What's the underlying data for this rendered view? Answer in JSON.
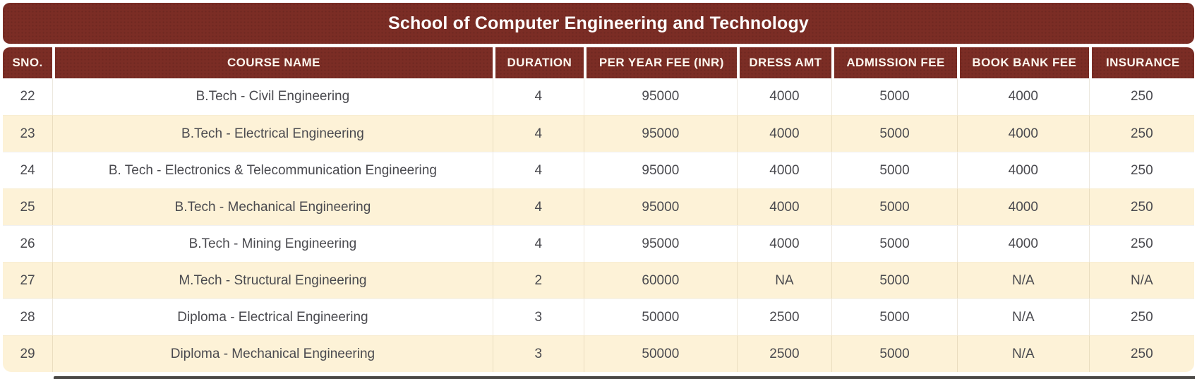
{
  "title": "School of Computer Engineering and Technology",
  "colors": {
    "brand_maroon": "#7b2d25",
    "stripe_cream": "#fdf2d7",
    "body_text": "#4a4a4f",
    "header_text": "#fdf6ee"
  },
  "table": {
    "columns": [
      "SNO.",
      "COURSE NAME",
      "DURATION",
      "PER YEAR FEE (INR)",
      "DRESS AMT",
      "ADMISSION FEE",
      "BOOK BANK FEE",
      "INSURANCE"
    ],
    "rows": [
      [
        "22",
        "B.Tech - Civil Engineering",
        "4",
        "95000",
        "4000",
        "5000",
        "4000",
        "250"
      ],
      [
        "23",
        "B.Tech - Electrical Engineering",
        "4",
        "95000",
        "4000",
        "5000",
        "4000",
        "250"
      ],
      [
        "24",
        "B. Tech - Electronics & Telecommunication Engineering",
        "4",
        "95000",
        "4000",
        "5000",
        "4000",
        "250"
      ],
      [
        "25",
        "B.Tech - Mechanical Engineering",
        "4",
        "95000",
        "4000",
        "5000",
        "4000",
        "250"
      ],
      [
        "26",
        "B.Tech - Mining Engineering",
        "4",
        "95000",
        "4000",
        "5000",
        "4000",
        "250"
      ],
      [
        "27",
        "M.Tech - Structural Engineering",
        "2",
        "60000",
        "NA",
        "5000",
        "N/A",
        "N/A"
      ],
      [
        "28",
        "Diploma - Electrical Engineering",
        "3",
        "50000",
        "2500",
        "5000",
        "N/A",
        "250"
      ],
      [
        "29",
        "Diploma - Mechanical Engineering",
        "3",
        "50000",
        "2500",
        "5000",
        "N/A",
        "250"
      ]
    ]
  }
}
